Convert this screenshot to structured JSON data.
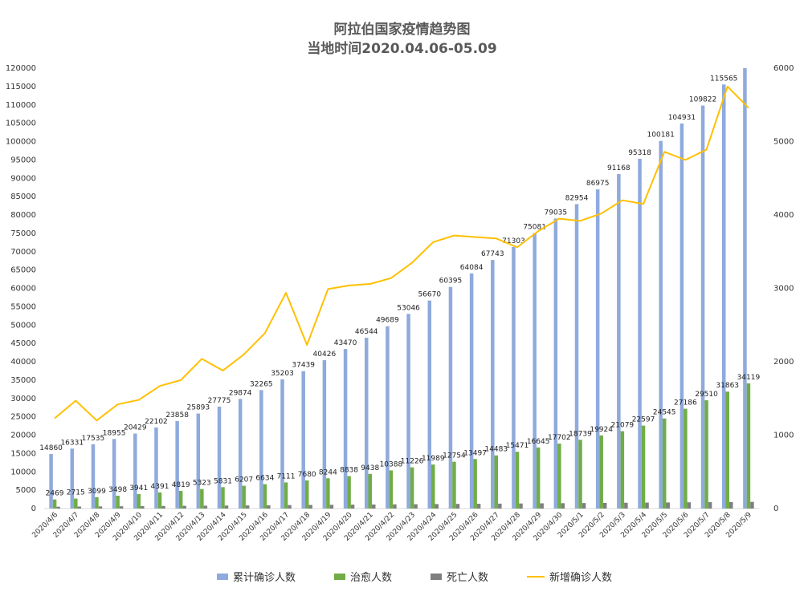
{
  "title_line1": "阿拉伯国家疫情趋势图",
  "title_line2": "当地时间2020.04.06-05.09",
  "colors": {
    "cumulative": "#8FAADC",
    "recovered": "#70AD47",
    "deaths": "#7F7F7F",
    "new_cases": "#FFC000"
  },
  "chart_data": {
    "type": "bar",
    "categories": [
      "2020/4/6",
      "2020/4/7",
      "2020/4/8",
      "2020/4/9",
      "2020/4/10",
      "2020/4/11",
      "2020/4/12",
      "2020/4/13",
      "2020/4/14",
      "2020/4/15",
      "2020/4/16",
      "2020/4/17",
      "2020/4/18",
      "2020/4/19",
      "2020/4/20",
      "2020/4/21",
      "2020/4/22",
      "2020/4/23",
      "2020/4/24",
      "2020/4/25",
      "2020/4/26",
      "2020/4/27",
      "2020/4/28",
      "2020/4/29",
      "2020/4/30",
      "2020/5/1",
      "2020/5/2",
      "2020/5/3",
      "2020/5/4",
      "2020/5/5",
      "2020/5/6",
      "2020/5/7",
      "2020/5/8",
      "2020/5/9"
    ],
    "series": [
      {
        "name": "累计确诊人数",
        "type": "bar",
        "axis": "left",
        "values": [
          14860,
          16331,
          17535,
          18955,
          20429,
          22102,
          23858,
          25893,
          27775,
          29874,
          32265,
          35203,
          37439,
          40426,
          43470,
          46544,
          49689,
          53046,
          56670,
          60395,
          64084,
          67743,
          71303,
          75081,
          79035,
          82954,
          86975,
          91168,
          95318,
          100181,
          104931,
          109822,
          115565,
          120000
        ]
      },
      {
        "name": "治愈人数",
        "type": "bar",
        "axis": "left",
        "values": [
          2469,
          2715,
          3099,
          3498,
          3941,
          4391,
          4819,
          5323,
          5831,
          6207,
          6634,
          7111,
          7680,
          8244,
          8838,
          9438,
          10388,
          11226,
          11989,
          12754,
          13497,
          14483,
          15471,
          16645,
          17702,
          18739,
          19924,
          21079,
          22597,
          24545,
          27186,
          29510,
          31863,
          34119
        ]
      },
      {
        "name": "死亡人数",
        "type": "bar",
        "axis": "left",
        "values": [
          500,
          540,
          580,
          620,
          660,
          700,
          740,
          780,
          820,
          860,
          900,
          940,
          980,
          1020,
          1060,
          1100,
          1140,
          1180,
          1220,
          1260,
          1300,
          1340,
          1380,
          1420,
          1460,
          1500,
          1540,
          1580,
          1620,
          1660,
          1700,
          1740,
          1780,
          1820
        ]
      },
      {
        "name": "新增确诊人数",
        "type": "line",
        "axis": "right",
        "values": [
          1230,
          1470,
          1200,
          1420,
          1480,
          1670,
          1750,
          2040,
          1880,
          2100,
          2390,
          2940,
          2230,
          2990,
          3040,
          3060,
          3140,
          3350,
          3630,
          3720,
          3700,
          3680,
          3560,
          3780,
          3950,
          3920,
          4020,
          4200,
          4150,
          4860,
          4750,
          4890,
          5750,
          5460
        ]
      }
    ],
    "bar_labels": {
      "cumulative": [
        "14860",
        "16331",
        "17535",
        "18955",
        "20429",
        "22102",
        "23858",
        "25893",
        "27775",
        "29874",
        "32265",
        "35203",
        "37439",
        "40426",
        "43470",
        "46544",
        "49689",
        "53046",
        "56670",
        "60395",
        "64084",
        "67743",
        "71303",
        "75081",
        "79035",
        "82954",
        "86975",
        "91168",
        "95318",
        "100181",
        "104931",
        "109822",
        "115565",
        ""
      ],
      "recovered": [
        "2469",
        "2715",
        "3099",
        "3498",
        "3941",
        "4391",
        "4819",
        "5323",
        "5831",
        "6207",
        "6634",
        "7111",
        "7680",
        "8244",
        "8838",
        "9438",
        "10388",
        "11226",
        "11989",
        "12754",
        "13497",
        "14483",
        "15471",
        "16645",
        "17702",
        "18739",
        "19924",
        "21079",
        "22597",
        "24545",
        "27186",
        "29510",
        "31863",
        "34119"
      ]
    },
    "ylim_left": [
      0,
      120000
    ],
    "ylim_right": [
      0,
      6000
    ],
    "yticks_left": [
      0,
      5000,
      10000,
      15000,
      20000,
      25000,
      30000,
      35000,
      40000,
      45000,
      50000,
      55000,
      60000,
      65000,
      70000,
      75000,
      80000,
      85000,
      90000,
      95000,
      100000,
      105000,
      110000,
      115000,
      120000
    ],
    "yticks_right": [
      0,
      1000,
      2000,
      3000,
      4000,
      5000,
      6000
    ],
    "legend_position": "bottom",
    "grid": false
  }
}
